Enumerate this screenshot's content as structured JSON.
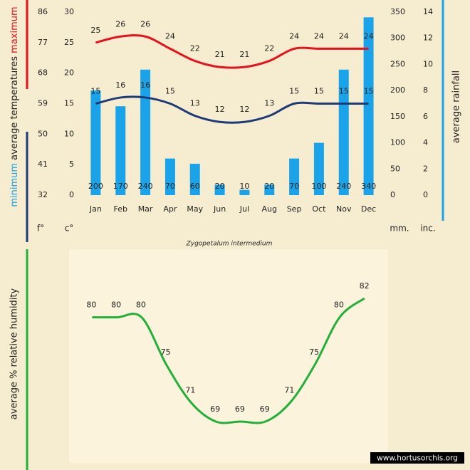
{
  "chart_data": [
    {
      "type": "bar",
      "title": "Zygopetalum intermedium",
      "ylabel": "average temperatures",
      "y2label": "average rainfall",
      "categories": [
        "Jan",
        "Feb",
        "Mar",
        "Apr",
        "May",
        "Jun",
        "Jul",
        "Aug",
        "Sep",
        "Oct",
        "Nov",
        "Dec"
      ],
      "ylim": [
        0,
        30
      ],
      "yticks": [
        0,
        5,
        10,
        15,
        20,
        25,
        30
      ],
      "yunit": "c°",
      "yflim": [
        32,
        86
      ],
      "yfticks": [
        32,
        41,
        50,
        59,
        68,
        77,
        86
      ],
      "yfunit": "f°",
      "y2lim": [
        0,
        350
      ],
      "y2ticks": [
        0,
        50,
        100,
        150,
        200,
        250,
        300,
        350
      ],
      "y2unit": "mm.",
      "y3lim": [
        0,
        14
      ],
      "y3ticks": [
        0,
        2,
        4,
        6,
        8,
        10,
        12,
        14
      ],
      "y3unit": "inc.",
      "series": [
        {
          "name": "maximum",
          "color": "#e8101a",
          "type": "line",
          "values": [
            25,
            26,
            26,
            24,
            22,
            21,
            21,
            22,
            24,
            24,
            24,
            24
          ]
        },
        {
          "name": "minimum",
          "color": "#1f3a78",
          "type": "line",
          "values": [
            15,
            16,
            16,
            15,
            13,
            12,
            12,
            13,
            15,
            15,
            15,
            15
          ]
        },
        {
          "color": "#1aa3e8",
          "type": "bar",
          "axis": "y2",
          "values": [
            200,
            170,
            240,
            70,
            60,
            20,
            10,
            20,
            70,
            100,
            240,
            340
          ]
        }
      ]
    },
    {
      "type": "line",
      "ylabel": "average % relative humidity",
      "color": "#22b03a",
      "values": [
        80,
        80,
        80,
        75,
        71,
        69,
        69,
        69,
        71,
        75,
        80,
        82
      ]
    }
  ],
  "watermark": "www.hortusorchis.org"
}
